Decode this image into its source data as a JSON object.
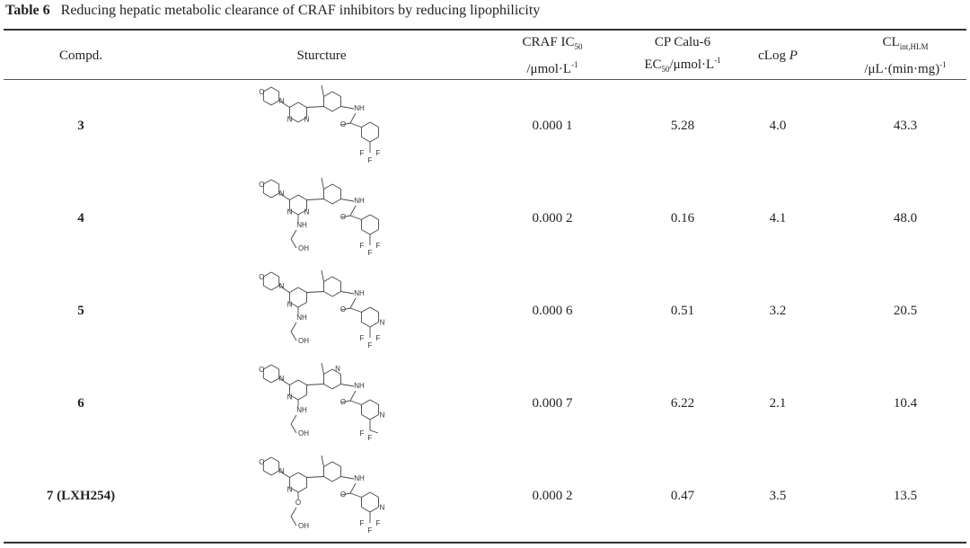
{
  "table": {
    "label": "Table 6",
    "caption": "Reducing hepatic metabolic clearance of CRAF inhibitors by reducing lipophilicity",
    "headers": {
      "compd": "Compd.",
      "structure": "Sturcture",
      "craf_a": "CRAF IC",
      "craf_sub": "50",
      "craf_b": "/μmol·L",
      "craf_sup": "-1",
      "cp_a": "CP Calu-6",
      "cp_b": "EC",
      "cp_sub": "50",
      "cp_c": "/μmol·L",
      "cp_sup": "-1",
      "clogp_a": "cLog ",
      "clogp_b": "P",
      "cl_a": "CL",
      "cl_sub": "int,HLM",
      "cl_b": "/μL·(min·mg)",
      "cl_sup": "-1"
    },
    "rows": [
      {
        "compd": "3",
        "craf": "0.000 1",
        "cp": "5.28",
        "clogp": "4.0",
        "cl": "43.3",
        "structure": {
          "core": "pyrimidine",
          "substituent": "none",
          "aryl_ring": "phenyl",
          "end_group": "CF3",
          "top_ring": "phenyl"
        }
      },
      {
        "compd": "4",
        "craf": "0.000 2",
        "cp": "0.16",
        "clogp": "4.1",
        "cl": "48.0",
        "structure": {
          "core": "pyrimidine",
          "substituent": "NH-CH2CH2-OH",
          "aryl_ring": "phenyl",
          "end_group": "CF3",
          "top_ring": "phenyl"
        }
      },
      {
        "compd": "5",
        "craf": "0.000 6",
        "cp": "0.51",
        "clogp": "3.2",
        "cl": "20.5",
        "structure": {
          "core": "pyridine",
          "substituent": "NH-CH2CH2-OH",
          "aryl_ring": "pyridine",
          "end_group": "CF3",
          "top_ring": "phenyl"
        }
      },
      {
        "compd": "6",
        "craf": "0.000 7",
        "cp": "6.22",
        "clogp": "2.1",
        "cl": "10.4",
        "structure": {
          "core": "pyridine",
          "substituent": "NH-CH2CH2-OH",
          "aryl_ring": "pyridine",
          "end_group": "CF2CH3",
          "top_ring": "pyridine"
        }
      },
      {
        "compd": "7 (LXH254)",
        "craf": "0.000 2",
        "cp": "0.47",
        "clogp": "3.5",
        "cl": "13.5",
        "structure": {
          "core": "pyridine",
          "substituent": "O-CH2CH2-OH",
          "aryl_ring": "pyridine",
          "end_group": "CF3",
          "top_ring": "phenyl"
        }
      }
    ]
  }
}
